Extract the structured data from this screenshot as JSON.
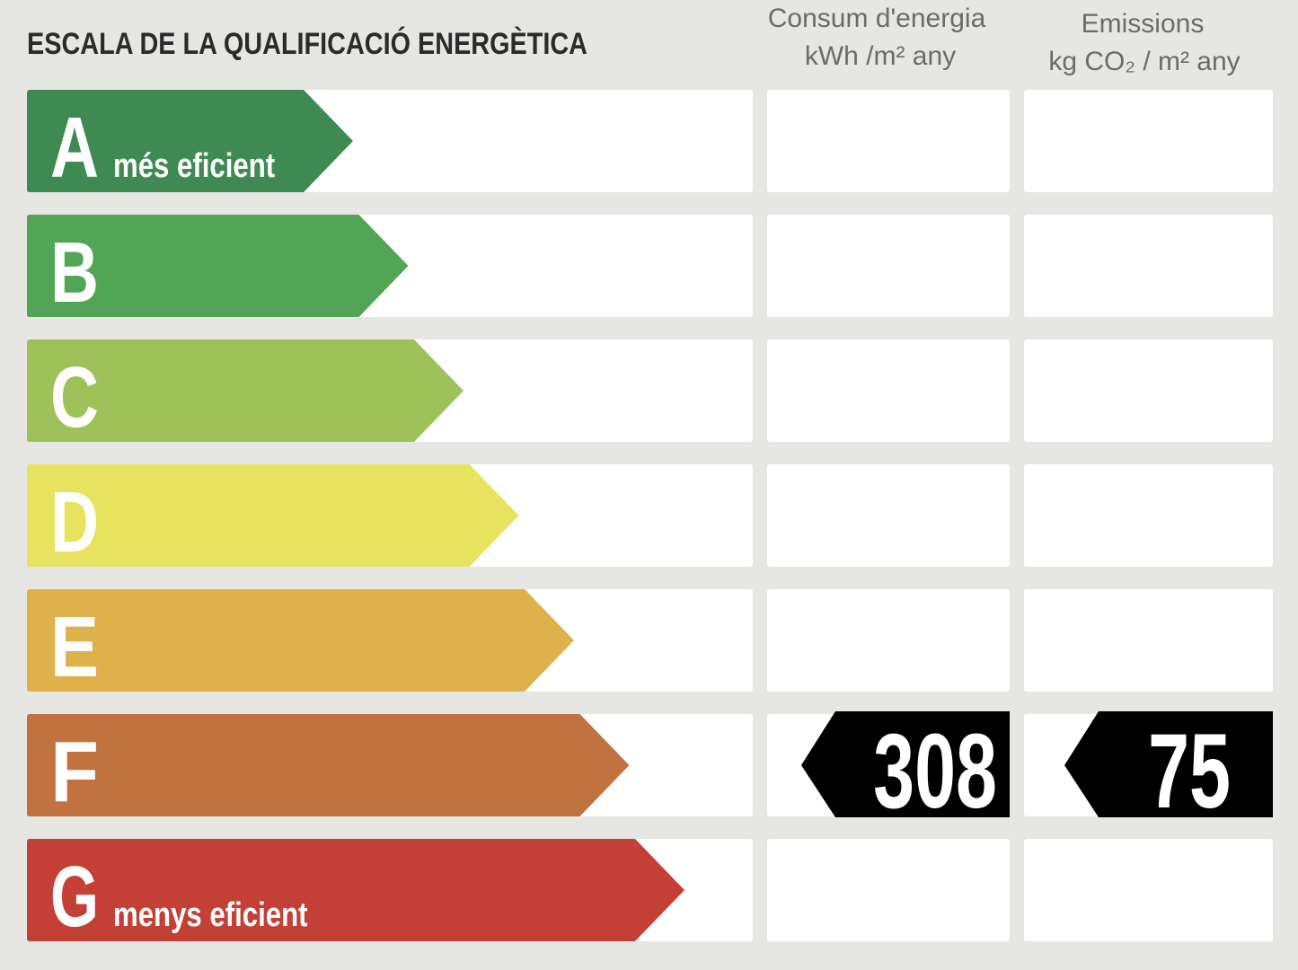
{
  "header": {
    "title": "ESCALA DE LA QUALIFICACIÓ ENERGÈTICA",
    "consumption": {
      "title": "Consum d'energia",
      "unit": "kWh /m² any"
    },
    "emissions": {
      "title": "Emissions",
      "unit": "kg CO₂ / m² any"
    }
  },
  "rows": [
    {
      "letter": "A",
      "note": "més eficient",
      "color": "#3f8a52"
    },
    {
      "letter": "B",
      "color": "#52a555"
    },
    {
      "letter": "C",
      "color": "#9dc25a"
    },
    {
      "letter": "D",
      "color": "#e8e35e"
    },
    {
      "letter": "E",
      "color": "#dfb14a"
    },
    {
      "letter": "F",
      "color": "#c1723e",
      "consumption": 308,
      "emissions": 75
    },
    {
      "letter": "G",
      "note": "menys eficient",
      "color": "#c43f35"
    }
  ]
}
